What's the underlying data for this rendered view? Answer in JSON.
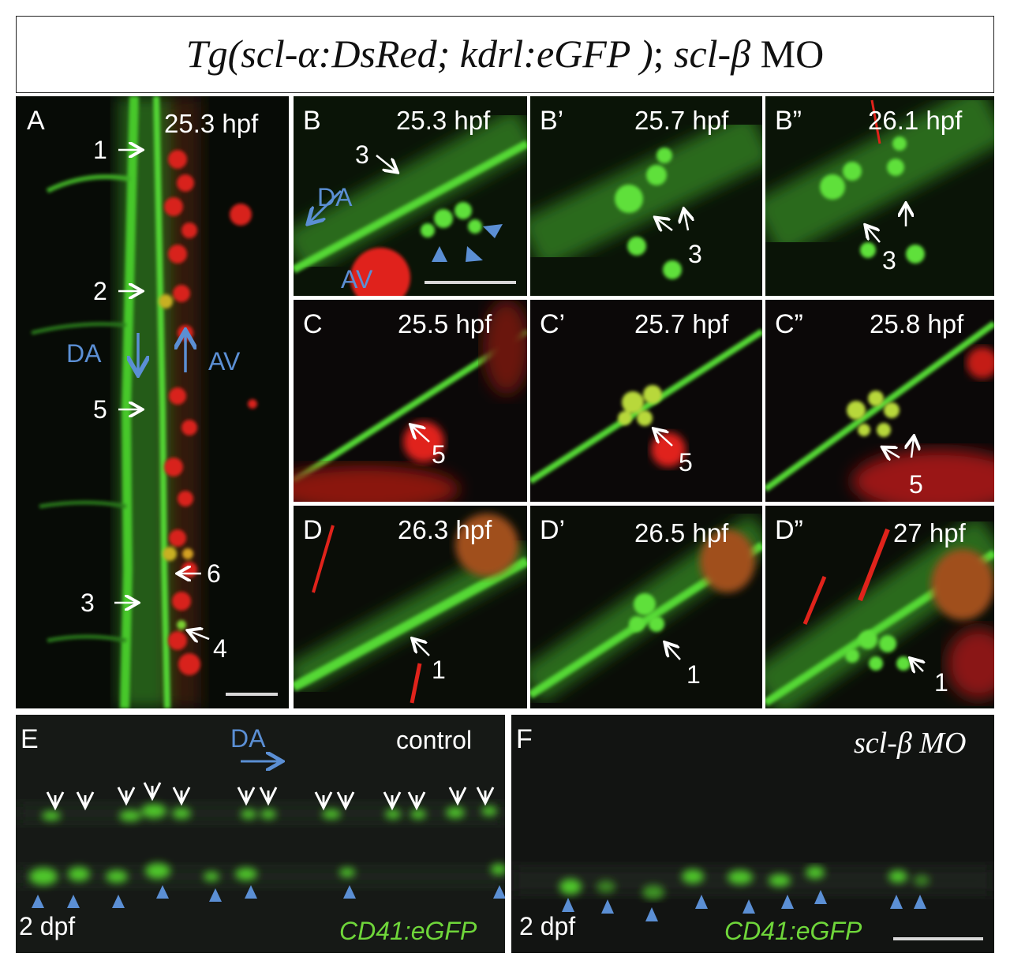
{
  "title": {
    "part1": "Tg(scl-α:DsRed; kdrl:eGFP )",
    "sep": "; ",
    "part2": "scl-β",
    "part3": " MO"
  },
  "panels": {
    "A": {
      "label": "A",
      "time": "25.3 hpf",
      "marks": [
        "1",
        "2",
        "5",
        "6",
        "3",
        "4"
      ],
      "da": "DA",
      "av": "AV"
    },
    "B": {
      "label": "B",
      "time": "25.3 hpf",
      "mark": "3",
      "da": "DA",
      "av": "AV"
    },
    "B1": {
      "label": "B’",
      "time": "25.7 hpf",
      "mark": "3"
    },
    "B2": {
      "label": "B”",
      "time": "26.1 hpf",
      "mark": "3"
    },
    "C": {
      "label": "C",
      "time": "25.5 hpf",
      "mark": "5"
    },
    "C1": {
      "label": "C’",
      "time": "25.7 hpf",
      "mark": "5"
    },
    "C2": {
      "label": "C”",
      "time": "25.8 hpf",
      "mark": "5"
    },
    "D": {
      "label": "D",
      "time": "26.3 hpf",
      "mark": "1"
    },
    "D1": {
      "label": "D’",
      "time": "26.5 hpf",
      "mark": "1"
    },
    "D2": {
      "label": "D”",
      "time": "27 hpf",
      "mark": "1"
    },
    "E": {
      "label": "E",
      "da": "DA",
      "condition": "control",
      "age": "2 dpf",
      "reporter": "CD41:eGFP"
    },
    "F": {
      "label": "F",
      "condition": "scl-β MO",
      "age": "2 dpf",
      "reporter": "CD41:eGFP"
    }
  },
  "colors": {
    "green": "#3ed12a",
    "red": "#e0231b",
    "blue_annotation": "#5b8fd4",
    "white_annotation": "#ffffff"
  }
}
